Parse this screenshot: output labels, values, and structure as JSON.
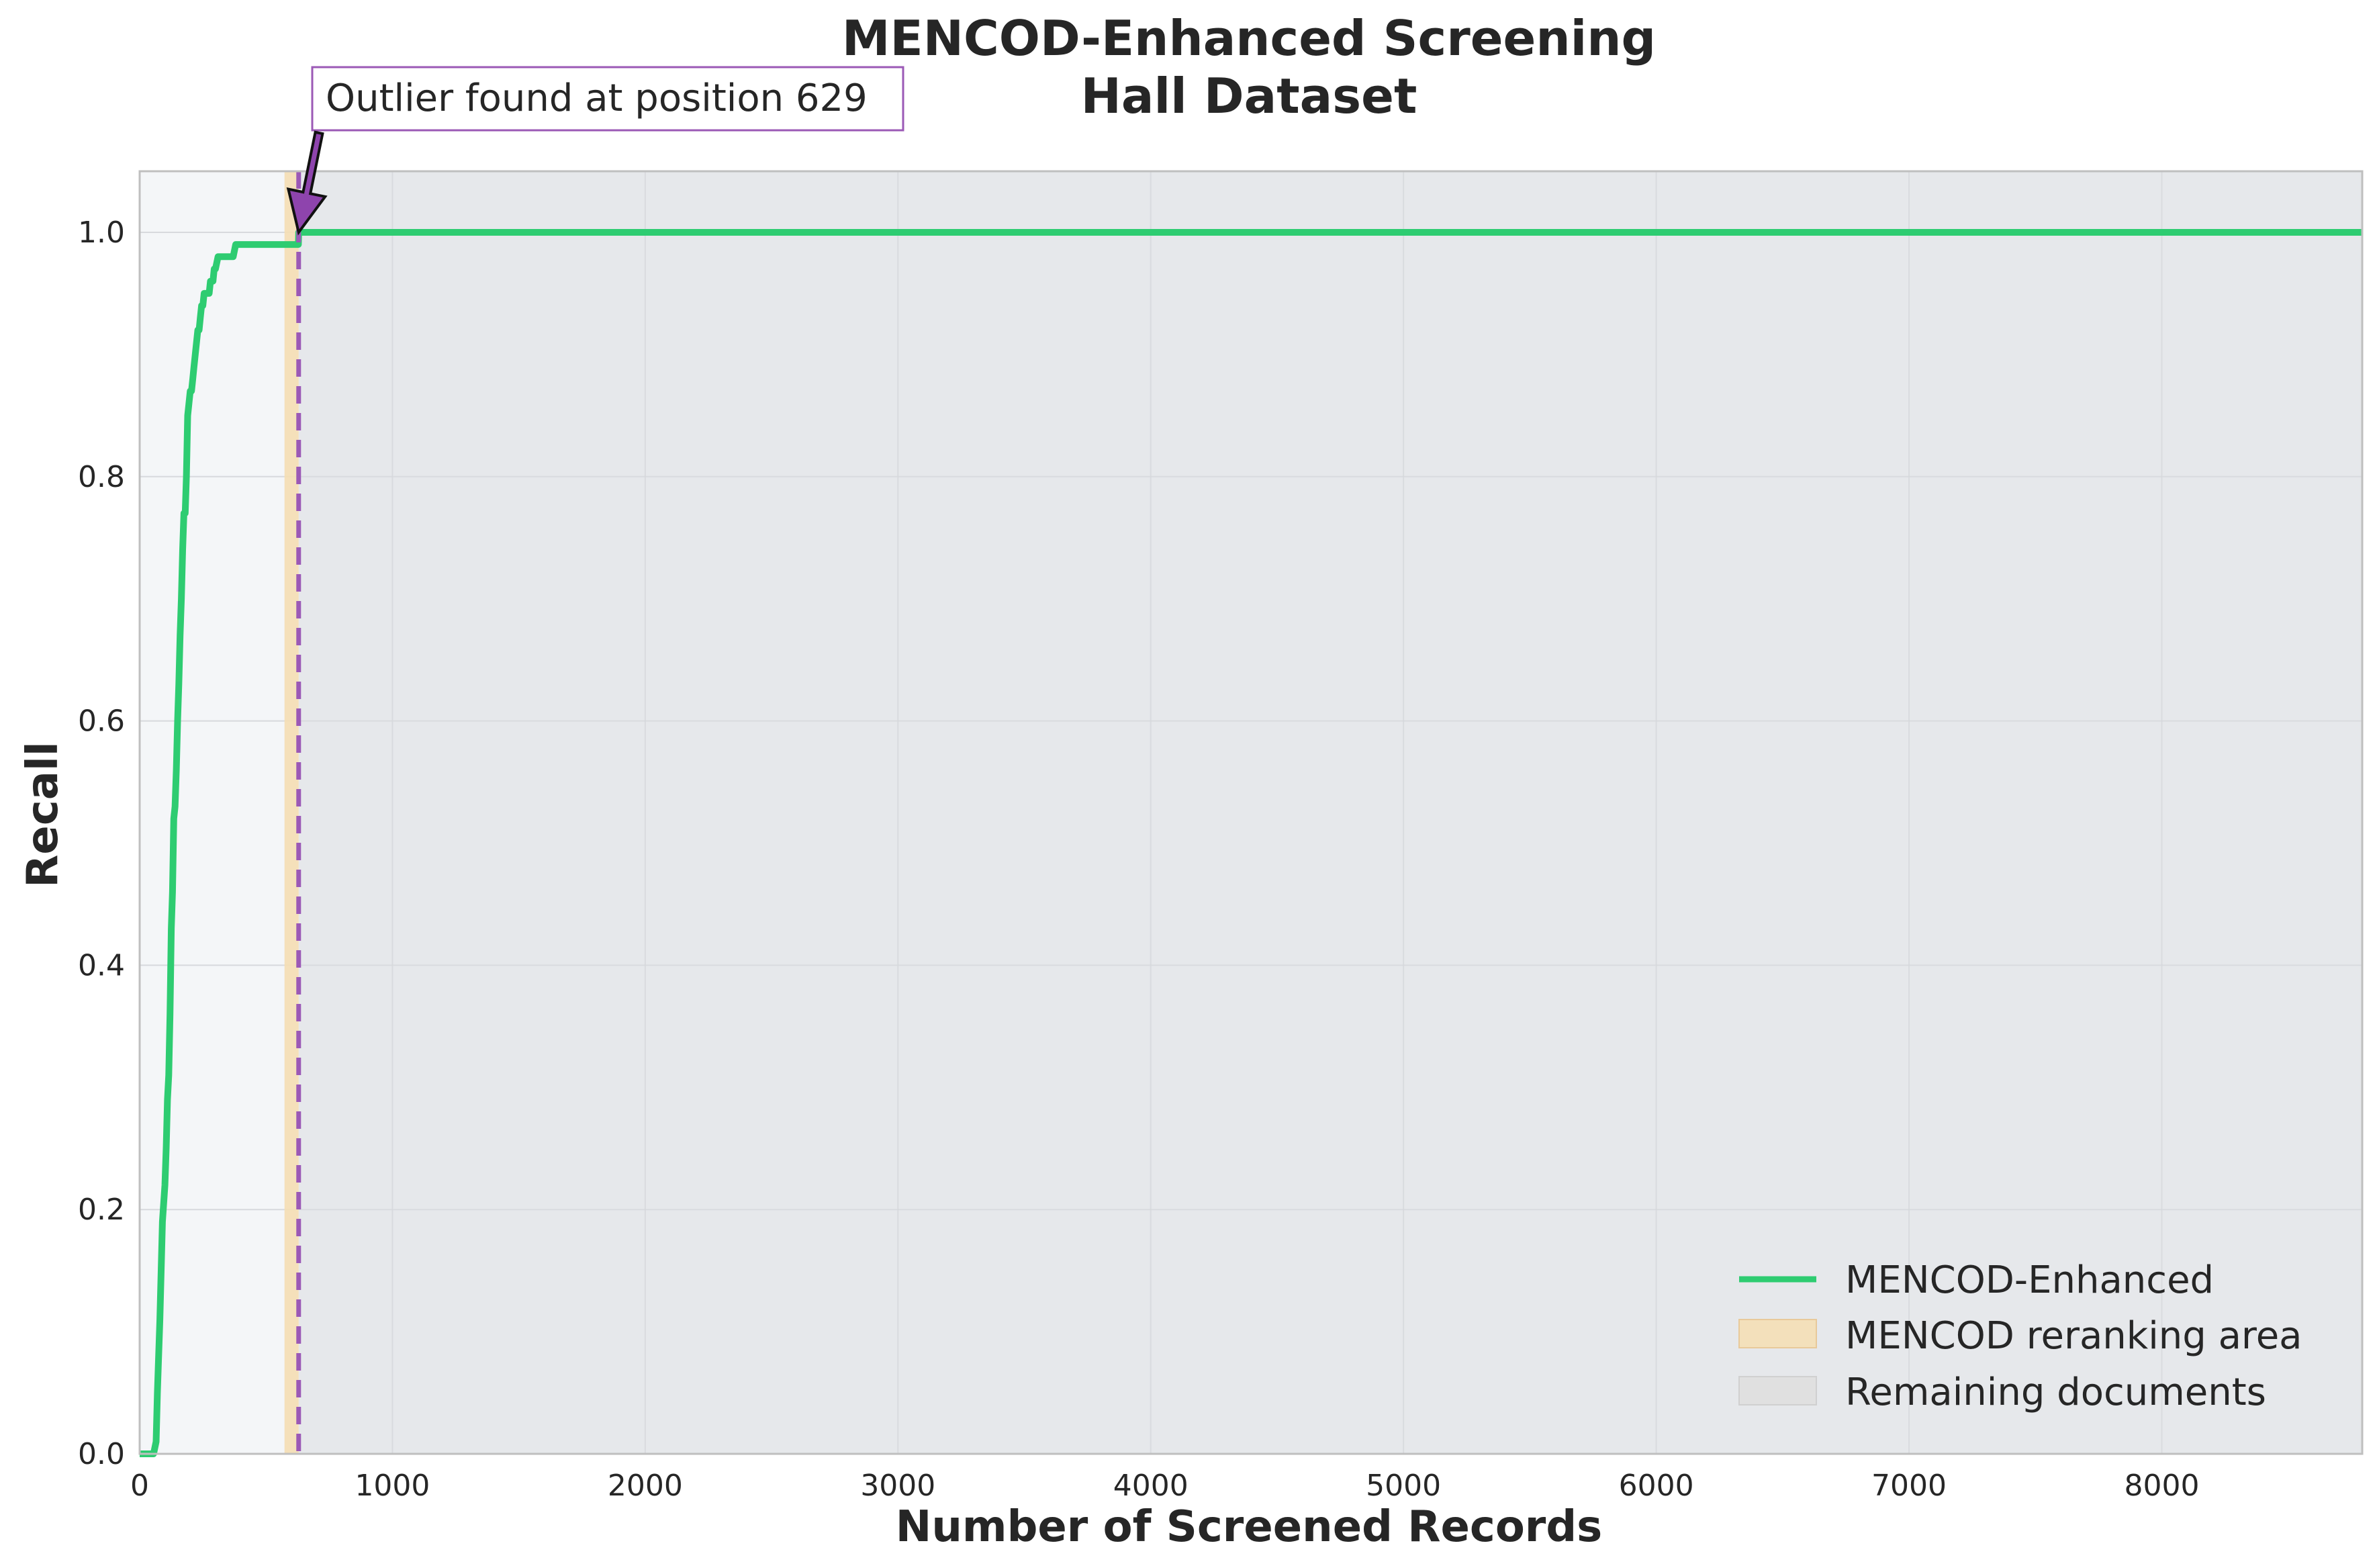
{
  "chart_data": {
    "type": "line",
    "title": "MENCOD-Enhanced Screening",
    "subtitle": "Hall Dataset",
    "xlabel": "Number of Screened Records",
    "ylabel": "Recall",
    "xlim": [
      0,
      8793
    ],
    "ylim": [
      0,
      1.05
    ],
    "x_ticks": [
      0,
      1000,
      2000,
      3000,
      4000,
      5000,
      6000,
      7000,
      8000
    ],
    "y_ticks": [
      0.0,
      0.2,
      0.4,
      0.6,
      0.8,
      1.0
    ],
    "x_tick_labels": [
      "0",
      "1000",
      "2000",
      "3000",
      "4000",
      "5000",
      "6000",
      "7000",
      "8000"
    ],
    "y_tick_labels": [
      "0.0",
      "0.2",
      "0.4",
      "0.6",
      "0.8",
      "1.0"
    ],
    "grid": true,
    "legend_position": "bottom-right",
    "series": [
      {
        "name": "MENCOD-Enhanced",
        "color": "#2ecc71",
        "x": [
          0,
          55,
          65,
          70,
          80,
          85,
          90,
          100,
          105,
          110,
          115,
          120,
          125,
          130,
          135,
          140,
          145,
          150,
          155,
          160,
          165,
          170,
          175,
          180,
          185,
          190,
          195,
          200,
          205,
          210,
          215,
          220,
          225,
          230,
          235,
          240,
          245,
          250,
          255,
          260,
          265,
          270,
          275,
          280,
          285,
          290,
          295,
          300,
          310,
          320,
          330,
          340,
          350,
          360,
          370,
          380,
          390,
          400,
          450,
          500,
          550,
          600,
          628,
          629,
          8793
        ],
        "y": [
          0,
          0,
          0.01,
          0.05,
          0.11,
          0.15,
          0.19,
          0.22,
          0.25,
          0.29,
          0.31,
          0.36,
          0.43,
          0.46,
          0.52,
          0.53,
          0.56,
          0.6,
          0.63,
          0.67,
          0.7,
          0.74,
          0.77,
          0.77,
          0.8,
          0.85,
          0.86,
          0.87,
          0.87,
          0.88,
          0.89,
          0.9,
          0.91,
          0.92,
          0.92,
          0.93,
          0.94,
          0.94,
          0.95,
          0.95,
          0.95,
          0.95,
          0.95,
          0.96,
          0.96,
          0.96,
          0.97,
          0.97,
          0.98,
          0.98,
          0.98,
          0.98,
          0.98,
          0.98,
          0.98,
          0.99,
          0.99,
          0.99,
          0.99,
          0.99,
          0.99,
          0.99,
          0.99,
          1.0,
          1.0
        ]
      }
    ],
    "regions": [
      {
        "name": "MENCOD reranking area",
        "x": [
          573,
          629
        ],
        "color": "#f5deb3"
      },
      {
        "name": "Remaining documents",
        "x": [
          629,
          8793
        ],
        "color": "#e5e5e5"
      }
    ],
    "screened_region_color": "#f4f6f8",
    "outlier": {
      "x": 629,
      "y": 1.0,
      "color": "#9b59b6",
      "label": "Outlier found at position 629"
    }
  }
}
